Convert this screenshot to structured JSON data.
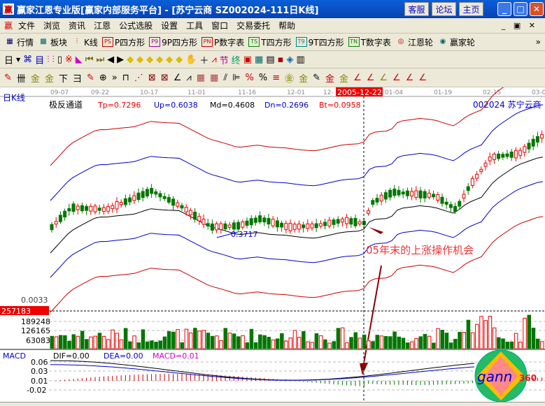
{
  "window": {
    "title": "赢家江恩专业版[赢家内部服务平台] - [苏宁云商   SZ002024-111日K线]",
    "buttons": [
      "客服",
      "论坛",
      "主页"
    ]
  },
  "menu": [
    "文件",
    "浏览",
    "资讯",
    "江恩",
    "公式选股",
    "设置",
    "工具",
    "窗口",
    "交易委托",
    "帮助"
  ],
  "toolbar1": [
    {
      "icon": "grid-icon",
      "label": "行情"
    },
    {
      "icon": "blocks-icon",
      "label": "板块"
    },
    {
      "icon": "candle-icon",
      "label": "K线"
    },
    {
      "icon": "PS",
      "label": "P四方形"
    },
    {
      "icon": "P9",
      "label": "9P四方形"
    },
    {
      "icon": "PN",
      "label": "P数字表"
    },
    {
      "icon": "TS",
      "label": "T四方形"
    },
    {
      "icon": "T9",
      "label": "9T四方形"
    },
    {
      "icon": "TN",
      "label": "T数字表"
    },
    {
      "icon": "wheel-icon",
      "label": "江恩轮"
    },
    {
      "icon": "big-icon",
      "label": "赢家轮"
    }
  ],
  "toolbar2": {
    "period": "日"
  },
  "chart": {
    "period_label": "日K线",
    "dates": [
      "09-07",
      "09-22",
      "10-17",
      "11-01",
      "11-16",
      "12-01",
      "12-",
      "01-04",
      "01-19",
      "02-15",
      "03-0"
    ],
    "cursor_date": "2005-12-22",
    "indicator": {
      "name": "极反通道",
      "tp": "Tp=0.7296",
      "up": "Up=0.6038",
      "md": "Md=0.4608",
      "dn": "Dn=0.2696",
      "bt": "Bt=0.0958"
    },
    "stock": "002024  苏宁云商",
    "low_label": "0.3717",
    "annotation": "05年末的上涨操作机会",
    "bottom_label": "0.0033",
    "volume": {
      "cursor_value": "257183",
      "ticks": [
        "189248",
        "126165",
        "63083"
      ]
    },
    "macd": {
      "name": "MACD",
      "dif": "DIF=0.00",
      "dea": "DEA=0.00",
      "macd": "MACD=0.01",
      "ticks": [
        "0.06",
        "0.03",
        "0.01",
        "-0.02"
      ]
    }
  },
  "logo": "gann360",
  "colors": {
    "up": "#e00000",
    "down": "#007800",
    "title": "#0a5fd8"
  }
}
